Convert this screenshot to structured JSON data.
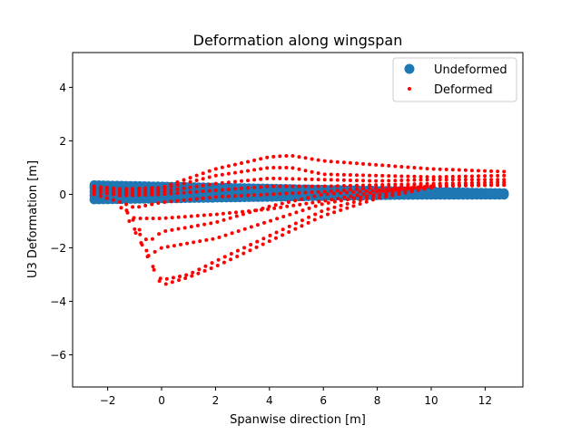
{
  "chart_data": {
    "type": "scatter",
    "title": "Deformation along wingspan",
    "xlabel": "Spanwise direction [m]",
    "ylabel": "U3 Deformation [m]",
    "xlim": [
      -3.3,
      13.4
    ],
    "ylim": [
      -7.2,
      5.3
    ],
    "xticks": [
      -2,
      0,
      2,
      4,
      6,
      8,
      10,
      12
    ],
    "yticks": [
      -6,
      -4,
      -2,
      0,
      2,
      4
    ],
    "xtick_labels": [
      "−2",
      "0",
      "2",
      "4",
      "6",
      "8",
      "10",
      "12"
    ],
    "ytick_labels": [
      "−6",
      "−4",
      "−2",
      "0",
      "2",
      "4"
    ],
    "grid": false,
    "legend_position": "top-right",
    "series": [
      {
        "name": "Undeformed",
        "color": "#1f77b4",
        "marker": "large-circle",
        "x_range": [
          -2.5,
          12.7
        ],
        "bands": [
          {
            "from": [
              -2.5,
              0.35
            ],
            "to": [
              12.7,
              0.05
            ]
          },
          {
            "from": [
              -2.5,
              0.25
            ],
            "to": [
              12.7,
              0.02
            ]
          },
          {
            "from": [
              -2.5,
              0.1
            ],
            "to": [
              12.7,
              -0.01
            ]
          },
          {
            "from": [
              -2.5,
              -0.05
            ],
            "to": [
              12.7,
              -0.02
            ]
          },
          {
            "from": [
              -2.5,
              -0.2
            ],
            "to": [
              12.7,
              0.03
            ]
          }
        ]
      },
      {
        "name": "Deformed",
        "color": "#ff0000",
        "marker": "small-dot",
        "curves": [
          [
            [
              -2.5,
              0.3
            ],
            [
              -1.5,
              0.2
            ],
            [
              0,
              0.25
            ],
            [
              2,
              0.95
            ],
            [
              4,
              1.4
            ],
            [
              4.8,
              1.45
            ],
            [
              6,
              1.25
            ],
            [
              8,
              1.1
            ],
            [
              10,
              0.95
            ],
            [
              12.7,
              0.85
            ]
          ],
          [
            [
              -2.5,
              0.25
            ],
            [
              -1.5,
              0.15
            ],
            [
              0,
              0.2
            ],
            [
              2,
              0.7
            ],
            [
              4,
              1.0
            ],
            [
              4.8,
              1.0
            ],
            [
              6,
              0.75
            ],
            [
              8,
              0.7
            ],
            [
              10,
              0.65
            ],
            [
              12.7,
              0.7
            ]
          ],
          [
            [
              -2.5,
              0.2
            ],
            [
              -1.5,
              0.05
            ],
            [
              0,
              0.1
            ],
            [
              2,
              0.4
            ],
            [
              4,
              0.6
            ],
            [
              6,
              0.55
            ],
            [
              8,
              0.5
            ],
            [
              10,
              0.55
            ],
            [
              12.7,
              0.55
            ]
          ],
          [
            [
              -2.5,
              0.1
            ],
            [
              -1.5,
              -0.05
            ],
            [
              0,
              0.0
            ],
            [
              2,
              0.15
            ],
            [
              4,
              0.3
            ],
            [
              6,
              0.3
            ],
            [
              8,
              0.35
            ],
            [
              10,
              0.4
            ],
            [
              12.7,
              0.45
            ]
          ],
          [
            [
              -2.5,
              0.0
            ],
            [
              -1.5,
              -0.3
            ],
            [
              -1.0,
              -0.5
            ],
            [
              0,
              -0.3
            ],
            [
              2,
              -0.1
            ],
            [
              4,
              0.0
            ],
            [
              6,
              0.1
            ],
            [
              8,
              0.25
            ],
            [
              10,
              0.35
            ],
            [
              12.7,
              0.35
            ]
          ],
          [
            [
              -1.5,
              -0.5
            ],
            [
              -1.0,
              -0.9
            ],
            [
              0,
              -0.9
            ],
            [
              2,
              -0.75
            ],
            [
              4,
              -0.55
            ],
            [
              6,
              -0.25
            ],
            [
              8,
              0.1
            ],
            [
              10,
              0.3
            ],
            [
              12.7,
              0.35
            ]
          ],
          [
            [
              -1.3,
              -0.6
            ],
            [
              -0.5,
              -1.8
            ],
            [
              0,
              -1.4
            ],
            [
              2,
              -1.05
            ],
            [
              4,
              -0.45
            ],
            [
              6,
              0.0
            ],
            [
              8,
              0.15
            ],
            [
              10,
              0.3
            ]
          ],
          [
            [
              -1.2,
              -1.0
            ],
            [
              -0.5,
              -2.3
            ],
            [
              0,
              -2.0
            ],
            [
              2,
              -1.65
            ],
            [
              4,
              -1.0
            ],
            [
              6,
              -0.35
            ],
            [
              8,
              0.0
            ],
            [
              10,
              0.25
            ]
          ],
          [
            [
              -1.0,
              -1.3
            ],
            [
              -0.3,
              -2.8
            ],
            [
              0,
              -3.2
            ],
            [
              1,
              -3.0
            ],
            [
              2,
              -2.5
            ],
            [
              4,
              -1.55
            ],
            [
              6,
              -0.6
            ],
            [
              8,
              -0.05
            ],
            [
              10,
              0.3
            ]
          ],
          [
            [
              -0.8,
              -1.5
            ],
            [
              -0.2,
              -3.0
            ],
            [
              0,
              -3.4
            ],
            [
              1,
              -3.1
            ],
            [
              2,
              -2.7
            ],
            [
              4,
              -1.75
            ],
            [
              6,
              -0.8
            ],
            [
              8,
              -0.15
            ],
            [
              10,
              0.25
            ]
          ]
        ]
      }
    ]
  }
}
